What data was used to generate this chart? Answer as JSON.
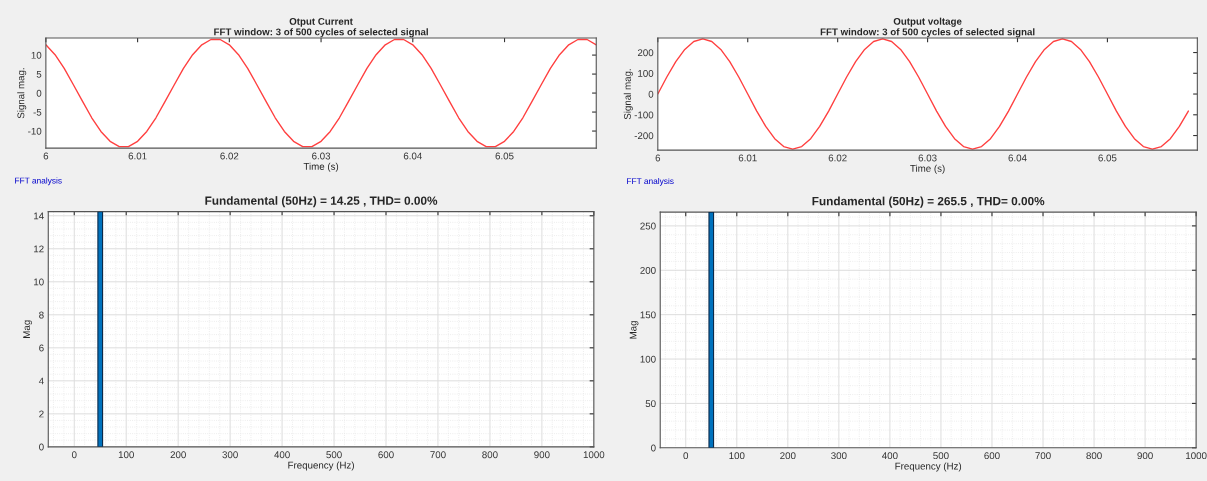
{
  "chart_data": [
    {
      "type": "line",
      "title": "Otput Current",
      "subtitle": "FFT window: 3 of 500 cycles of selected signal",
      "xlabel": "Time (s)",
      "ylabel": "Signal mag.",
      "x": [
        6,
        6.001,
        6.002,
        6.003,
        6.004,
        6.005,
        6.006,
        6.007,
        6.008,
        6.009,
        6.01,
        6.011,
        6.012,
        6.013,
        6.014,
        6.015,
        6.016,
        6.017,
        6.018,
        6.019,
        6.02,
        6.021,
        6.022,
        6.023,
        6.024,
        6.025,
        6.026,
        6.027,
        6.028,
        6.029,
        6.03,
        6.031,
        6.032,
        6.033,
        6.034,
        6.035,
        6.036,
        6.037,
        6.038,
        6.039,
        6.04,
        6.041,
        6.042,
        6.043,
        6.044,
        6.045,
        6.046,
        6.047,
        6.048,
        6.049,
        6.05,
        6.051,
        6.052,
        6.053,
        6.054,
        6.055,
        6.056,
        6.057,
        6.058,
        6.059,
        6.06
      ],
      "series": [
        {
          "color": "#ff4040",
          "values": [
            12.7,
            10.1,
            6.5,
            2.2,
            -2.2,
            -6.5,
            -10.1,
            -12.7,
            -14.1,
            -14.1,
            -12.7,
            -10.1,
            -6.5,
            -2.2,
            2.2,
            6.5,
            10.1,
            12.7,
            14.1,
            14.1,
            12.7,
            10.1,
            6.5,
            2.2,
            -2.2,
            -6.5,
            -10.1,
            -12.7,
            -14.1,
            -14.1,
            -12.7,
            -10.1,
            -6.5,
            -2.2,
            2.2,
            6.5,
            10.1,
            12.7,
            14.1,
            14.1,
            12.7,
            10.1,
            6.5,
            2.2,
            -2.2,
            -6.5,
            -10.1,
            -12.7,
            -14.1,
            -14.1,
            -12.7,
            -10.1,
            -6.5,
            -2.2,
            2.2,
            6.5,
            10.1,
            12.7,
            14.1,
            14.1,
            12.7
          ]
        }
      ],
      "xlim": [
        6,
        6.06
      ],
      "ylim": [
        -14.5,
        14.5
      ],
      "xticks": [
        6,
        6.01,
        6.02,
        6.03,
        6.04,
        6.05
      ],
      "yticks": [
        -10,
        -5,
        0,
        5,
        10
      ],
      "grid": false,
      "line_style": "solid",
      "marker": "none"
    },
    {
      "type": "bar",
      "title": "Fundamental (50Hz) = 14.25 , THD= 0.00%",
      "xlabel": "Frequency (Hz)",
      "ylabel": "Mag",
      "annotations": [
        "FFT analysis"
      ],
      "x": [
        50
      ],
      "series": [
        {
          "color": "#0072bd",
          "values": [
            14.25
          ]
        }
      ],
      "xlim": [
        -50,
        1000
      ],
      "ylim": [
        0,
        14.25
      ],
      "xticks": [
        0,
        100,
        200,
        300,
        400,
        500,
        600,
        700,
        800,
        900,
        1000
      ],
      "yticks": [
        0,
        2,
        4,
        6,
        8,
        10,
        12,
        14
      ],
      "grid": true
    },
    {
      "type": "line",
      "title": "Output voltage",
      "subtitle": "FFT window: 3 of 500 cycles of selected signal",
      "xlabel": "Time (s)",
      "ylabel": "Signal mag.",
      "x": [
        6,
        6.001,
        6.002,
        6.003,
        6.004,
        6.005,
        6.006,
        6.007,
        6.008,
        6.009,
        6.01,
        6.011,
        6.012,
        6.013,
        6.014,
        6.015,
        6.016,
        6.017,
        6.018,
        6.019,
        6.02,
        6.021,
        6.022,
        6.023,
        6.024,
        6.025,
        6.026,
        6.027,
        6.028,
        6.029,
        6.03,
        6.031,
        6.032,
        6.033,
        6.034,
        6.035,
        6.036,
        6.037,
        6.038,
        6.039,
        6.04,
        6.041,
        6.042,
        6.043,
        6.044,
        6.045,
        6.046,
        6.047,
        6.048,
        6.049,
        6.05,
        6.051,
        6.052,
        6.053,
        6.054,
        6.055,
        6.056,
        6.057,
        6.058,
        6.059
      ],
      "series": [
        {
          "color": "#ff4040",
          "values": [
            0,
            82,
            156,
            215,
            253,
            265.5,
            253,
            215,
            156,
            82,
            0,
            -82,
            -156,
            -215,
            -253,
            -265.5,
            -253,
            -215,
            -156,
            -82,
            0,
            82,
            156,
            215,
            253,
            265.5,
            253,
            215,
            156,
            82,
            0,
            -82,
            -156,
            -215,
            -253,
            -265.5,
            -253,
            -215,
            -156,
            -82,
            0,
            82,
            156,
            215,
            253,
            265.5,
            253,
            215,
            156,
            82,
            0,
            -82,
            -156,
            -215,
            -253,
            -265.5,
            -253,
            -215,
            -156,
            -82
          ]
        }
      ],
      "xlim": [
        6,
        6.06
      ],
      "ylim": [
        -270,
        270
      ],
      "xticks": [
        6,
        6.01,
        6.02,
        6.03,
        6.04,
        6.05
      ],
      "yticks": [
        -200,
        -100,
        0,
        100,
        200
      ],
      "grid": false,
      "line_style": "solid",
      "marker": "none"
    },
    {
      "type": "bar",
      "title": "Fundamental (50Hz) = 265.5 , THD= 0.00%",
      "xlabel": "Frequency (Hz)",
      "ylabel": "Mag",
      "annotations": [
        "FFT analysis"
      ],
      "x": [
        50
      ],
      "series": [
        {
          "color": "#0072bd",
          "values": [
            265.5
          ]
        }
      ],
      "xlim": [
        -50,
        1000
      ],
      "ylim": [
        0,
        265.5
      ],
      "xticks": [
        0,
        100,
        200,
        300,
        400,
        500,
        600,
        700,
        800,
        900,
        1000
      ],
      "yticks": [
        0,
        50,
        100,
        150,
        200,
        250
      ],
      "grid": true
    }
  ]
}
